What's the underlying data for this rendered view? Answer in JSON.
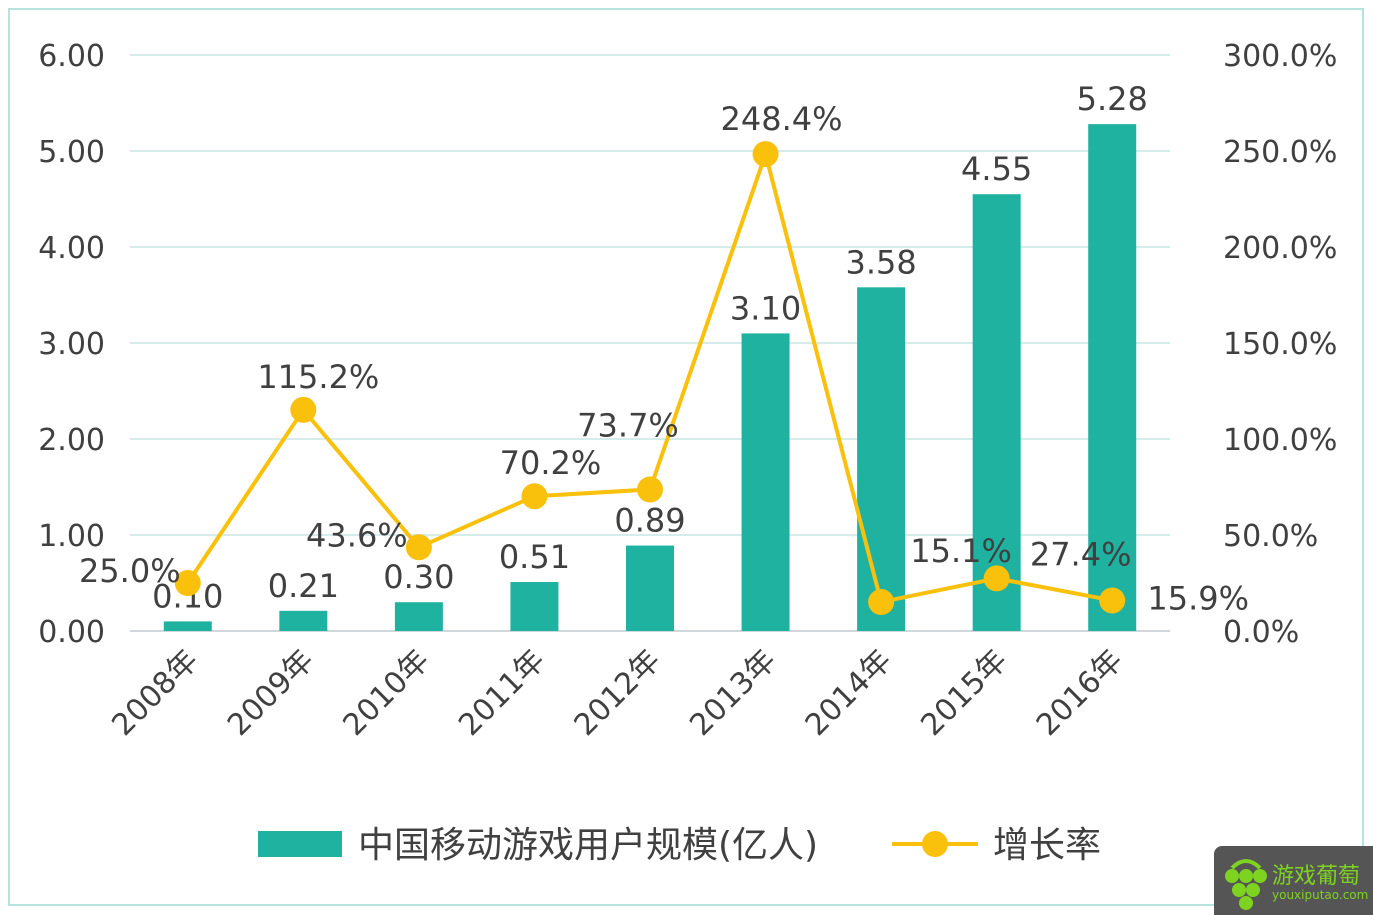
{
  "chart_data": {
    "type": "bar+line",
    "categories": [
      "2008年",
      "2009年",
      "2010年",
      "2011年",
      "2012年",
      "2013年",
      "2014年",
      "2015年",
      "2016年"
    ],
    "series": [
      {
        "name": "中国移动游戏用户规模(亿人)",
        "type": "bar",
        "axis": "left",
        "color": "#20b2a0",
        "values": [
          0.1,
          0.21,
          0.3,
          0.51,
          0.89,
          3.1,
          3.58,
          4.55,
          5.28
        ],
        "labels": [
          "0.10",
          "0.21",
          "0.30",
          "0.51",
          "0.89",
          "3.10",
          "3.58",
          "4.55",
          "5.28"
        ]
      },
      {
        "name": "增长率",
        "type": "line",
        "axis": "right",
        "color": "#f9c00c",
        "values": [
          25.0,
          115.2,
          43.6,
          70.2,
          73.7,
          248.4,
          15.1,
          27.4,
          15.9
        ],
        "labels": [
          "25.0%",
          "115.2%",
          "43.6%",
          "70.2%",
          "73.7%",
          "248.4%",
          "15.1%",
          "27.4%",
          "15.9%"
        ]
      }
    ],
    "left_axis": {
      "ylim": [
        0,
        6
      ],
      "ticks": [
        "0.00",
        "1.00",
        "2.00",
        "3.00",
        "4.00",
        "5.00",
        "6.00"
      ]
    },
    "right_axis": {
      "ylim": [
        0,
        300
      ],
      "ticks": [
        "0.0%",
        "50.0%",
        "100.0%",
        "150.0%",
        "200.0%",
        "250.0%",
        "300.0%"
      ]
    },
    "grid": true,
    "gridline_color": "#d6ecea",
    "legend_placement": "bottom"
  },
  "watermark": {
    "name": "游戏葡萄",
    "domain": "youxiputao.com"
  }
}
